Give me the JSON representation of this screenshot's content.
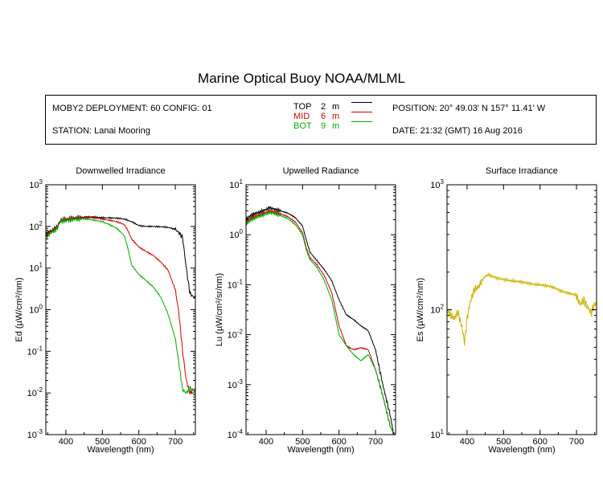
{
  "header": {
    "title": "Marine Optical Buoy NOAA/MLML",
    "deployment": "MOBY2 DEPLOYMENT: 60 CONFIG: 01",
    "station": "STATION: Lanai Mooring",
    "position": "POSITION: 20° 49.03' N   157° 11.41' W",
    "date": "DATE: 21:32 (GMT) 16 Aug 2016",
    "legend": [
      {
        "name": "TOP",
        "depth": "2",
        "unit": "m",
        "color": "#000000"
      },
      {
        "name": "MID",
        "depth": "6",
        "unit": "m",
        "color": "#cc0000"
      },
      {
        "name": "BOT",
        "depth": "9",
        "unit": "m",
        "color": "#00aa00"
      }
    ]
  },
  "chart_data": [
    {
      "type": "line",
      "title": "Downwelled Irradiance",
      "xlabel": "Wavelength (nm)",
      "ylabel": "Ed  (µW/cm²/nm)",
      "xlim": [
        345,
        755
      ],
      "ylim": [
        0.001,
        1000
      ],
      "yscale": "log",
      "xticks": [
        400,
        500,
        600,
        700
      ],
      "yticks": [
        {
          "value": 0.001,
          "base": "10",
          "exp": "-3"
        },
        {
          "value": 0.01,
          "base": "10",
          "exp": "-2"
        },
        {
          "value": 0.1,
          "base": "10",
          "exp": "-1"
        },
        {
          "value": 1,
          "base": "10",
          "exp": "0"
        },
        {
          "value": 10,
          "base": "10",
          "exp": "1"
        },
        {
          "value": 100,
          "base": "10",
          "exp": "2"
        },
        {
          "value": 1000,
          "base": "10",
          "exp": "3"
        }
      ],
      "series": [
        {
          "name": "TOP",
          "color": "#000000",
          "x": [
            345,
            360,
            375,
            385,
            400,
            420,
            440,
            460,
            480,
            500,
            520,
            540,
            560,
            580,
            600,
            620,
            640,
            660,
            680,
            700,
            710,
            720,
            730,
            740,
            750,
            755
          ],
          "y": [
            65,
            80,
            95,
            140,
            150,
            160,
            165,
            170,
            168,
            162,
            160,
            158,
            150,
            130,
            105,
            100,
            100,
            98,
            95,
            85,
            70,
            55,
            10,
            2.5,
            2,
            2
          ]
        },
        {
          "name": "MID",
          "color": "#cc0000",
          "x": [
            345,
            360,
            375,
            385,
            400,
            420,
            440,
            460,
            480,
            500,
            520,
            540,
            560,
            570,
            580,
            600,
            620,
            640,
            660,
            680,
            700,
            710,
            720,
            730,
            740,
            750,
            755
          ],
          "y": [
            60,
            75,
            90,
            135,
            145,
            155,
            158,
            163,
            160,
            150,
            140,
            130,
            110,
            80,
            50,
            32,
            25,
            20,
            14,
            9,
            3,
            0.8,
            0.1,
            0.02,
            0.01,
            0.012,
            0.01
          ]
        },
        {
          "name": "BOT",
          "color": "#00aa00",
          "x": [
            345,
            360,
            375,
            385,
            400,
            420,
            440,
            460,
            480,
            500,
            520,
            540,
            560,
            570,
            580,
            600,
            620,
            640,
            660,
            680,
            700,
            710,
            720,
            730,
            740,
            750,
            755
          ],
          "y": [
            55,
            70,
            85,
            130,
            135,
            145,
            148,
            150,
            140,
            130,
            110,
            90,
            60,
            30,
            12,
            7,
            5,
            3.5,
            2,
            0.8,
            0.2,
            0.05,
            0.012,
            0.01,
            0.013,
            0.012,
            0.012
          ]
        }
      ]
    },
    {
      "type": "line",
      "title": "Upwelled Radiance",
      "xlabel": "Wavelength (nm)",
      "ylabel": "Lu  (µW/cm²/sr/nm)",
      "xlim": [
        345,
        755
      ],
      "ylim": [
        0.0001,
        10
      ],
      "yscale": "log",
      "xticks": [
        400,
        500,
        600,
        700
      ],
      "yticks": [
        {
          "value": 0.0001,
          "base": "10",
          "exp": "-4"
        },
        {
          "value": 0.001,
          "base": "10",
          "exp": "-3"
        },
        {
          "value": 0.01,
          "base": "10",
          "exp": "-2"
        },
        {
          "value": 0.1,
          "base": "10",
          "exp": "-1"
        },
        {
          "value": 1,
          "base": "10",
          "exp": "0"
        },
        {
          "value": 10,
          "base": "10",
          "exp": "1"
        }
      ],
      "series": [
        {
          "name": "TOP",
          "color": "#000000",
          "x": [
            345,
            360,
            380,
            400,
            410,
            420,
            440,
            460,
            480,
            500,
            510,
            520,
            540,
            560,
            580,
            600,
            620,
            640,
            660,
            680,
            700,
            720,
            740,
            750,
            755
          ],
          "y": [
            2,
            2.5,
            2.8,
            3.2,
            3.5,
            3.3,
            3.0,
            2.7,
            2.2,
            1.5,
            0.8,
            0.45,
            0.3,
            0.2,
            0.12,
            0.05,
            0.025,
            0.02,
            0.015,
            0.012,
            0.005,
            0.001,
            0.00025,
            0.0001,
            0.0001
          ]
        },
        {
          "name": "MID",
          "color": "#cc0000",
          "x": [
            345,
            360,
            380,
            400,
            410,
            420,
            440,
            460,
            480,
            500,
            510,
            520,
            540,
            560,
            580,
            600,
            620,
            640,
            660,
            680,
            700,
            720,
            740,
            750,
            755
          ],
          "y": [
            1.8,
            2.2,
            2.5,
            2.8,
            3.0,
            2.9,
            2.6,
            2.3,
            1.8,
            1.1,
            0.55,
            0.35,
            0.25,
            0.15,
            0.07,
            0.015,
            0.006,
            0.005,
            0.0055,
            0.005,
            0.002,
            0.0006,
            0.00015,
            0.0001,
            0.0001
          ]
        },
        {
          "name": "BOT",
          "color": "#00aa00",
          "x": [
            345,
            360,
            380,
            400,
            410,
            420,
            440,
            460,
            480,
            500,
            510,
            520,
            540,
            560,
            580,
            600,
            620,
            640,
            660,
            680,
            700,
            720,
            740,
            750,
            755
          ],
          "y": [
            1.6,
            2.0,
            2.3,
            2.6,
            2.8,
            2.7,
            2.4,
            2.1,
            1.6,
            1.0,
            0.5,
            0.32,
            0.22,
            0.12,
            0.05,
            0.01,
            0.006,
            0.004,
            0.003,
            0.004,
            0.002,
            0.0006,
            0.00015,
            0.0001,
            0.0001
          ]
        }
      ]
    },
    {
      "type": "line",
      "title": "Surface Irradiance",
      "xlabel": "Wavelength (nm)",
      "ylabel": "Es  (µW/cm²/nm)",
      "xlim": [
        345,
        755
      ],
      "ylim": [
        10,
        1000
      ],
      "yscale": "log",
      "xticks": [
        400,
        500,
        600,
        700
      ],
      "yticks": [
        {
          "value": 10,
          "base": "10",
          "exp": "1"
        },
        {
          "value": 100,
          "base": "10",
          "exp": "2"
        },
        {
          "value": 1000,
          "base": "10",
          "exp": "3"
        }
      ],
      "series": [
        {
          "name": "Es",
          "color": "#c8b400",
          "x": [
            345,
            355,
            365,
            375,
            385,
            393,
            400,
            410,
            420,
            430,
            440,
            450,
            460,
            480,
            500,
            520,
            540,
            560,
            580,
            600,
            620,
            640,
            660,
            680,
            700,
            710,
            720,
            730,
            740,
            750,
            755
          ],
          "y": [
            100,
            90,
            85,
            95,
            75,
            55,
            85,
            120,
            145,
            150,
            170,
            185,
            190,
            180,
            175,
            170,
            168,
            165,
            160,
            158,
            155,
            150,
            140,
            135,
            130,
            110,
            120,
            105,
            95,
            110,
            112
          ]
        }
      ]
    }
  ]
}
